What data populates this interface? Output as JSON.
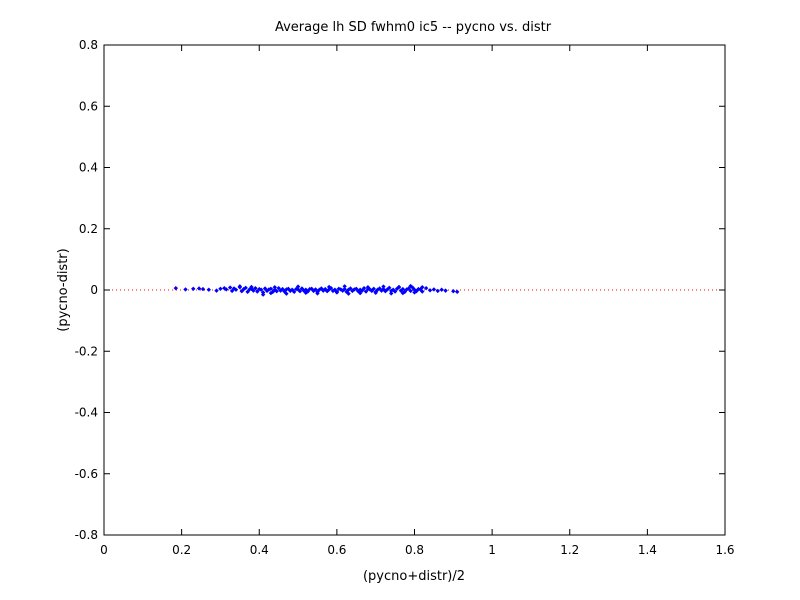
{
  "chart_data": {
    "type": "scatter",
    "title": "Average lh SD fwhm0 ic5 -- pycno vs. distr",
    "xlabel": "(pycno+distr)/2",
    "ylabel": "(pycno-distr)",
    "xlim": [
      0,
      1.6
    ],
    "ylim": [
      -0.8,
      0.8
    ],
    "xticks": [
      "0",
      "0.2",
      "0.4",
      "0.6",
      "0.8",
      "1",
      "1.2",
      "1.4",
      "1.6"
    ],
    "yticks": [
      "-0.8",
      "-0.6",
      "-0.4",
      "-0.2",
      "0",
      "0.2",
      "0.4",
      "0.6",
      "0.8"
    ],
    "grid": false,
    "marker_color": "#0000ff",
    "reference_line": {
      "y": 0,
      "color": "#ff0000",
      "style": "dotted"
    },
    "series": [
      {
        "x": [
          0.185,
          0.21,
          0.23,
          0.245,
          0.255,
          0.27,
          0.29,
          0.3,
          0.31,
          0.315,
          0.325,
          0.33,
          0.335,
          0.34,
          0.35,
          0.355,
          0.36,
          0.365,
          0.37,
          0.375,
          0.38,
          0.385,
          0.39,
          0.395,
          0.4,
          0.405,
          0.41,
          0.415,
          0.42,
          0.425,
          0.43,
          0.435,
          0.44,
          0.445,
          0.45,
          0.455,
          0.46,
          0.465,
          0.47,
          0.475,
          0.48,
          0.485,
          0.49,
          0.495,
          0.5,
          0.505,
          0.51,
          0.515,
          0.52,
          0.525,
          0.53,
          0.535,
          0.54,
          0.545,
          0.55,
          0.555,
          0.56,
          0.565,
          0.57,
          0.575,
          0.58,
          0.585,
          0.59,
          0.595,
          0.6,
          0.605,
          0.61,
          0.615,
          0.62,
          0.625,
          0.63,
          0.635,
          0.64,
          0.645,
          0.65,
          0.655,
          0.66,
          0.665,
          0.67,
          0.675,
          0.68,
          0.685,
          0.69,
          0.695,
          0.7,
          0.705,
          0.71,
          0.715,
          0.72,
          0.725,
          0.73,
          0.735,
          0.74,
          0.745,
          0.75,
          0.755,
          0.76,
          0.765,
          0.77,
          0.775,
          0.78,
          0.785,
          0.79,
          0.795,
          0.8,
          0.805,
          0.81,
          0.815,
          0.82,
          0.83,
          0.84,
          0.85,
          0.86,
          0.87,
          0.88,
          0.9,
          0.91,
          0.41,
          0.43,
          0.47,
          0.52,
          0.55,
          0.6,
          0.63,
          0.66,
          0.7,
          0.74,
          0.77,
          0.8,
          0.35,
          0.38,
          0.44,
          0.5,
          0.58,
          0.62,
          0.68,
          0.72,
          0.76,
          0.79,
          0.82
        ],
        "y": [
          0.006,
          0.002,
          0.004,
          0.005,
          0.003,
          0.001,
          -0.002,
          0.004,
          0.006,
          0.002,
          0.008,
          -0.003,
          0.005,
          0.001,
          0.009,
          -0.004,
          0.003,
          0.007,
          -0.006,
          0.002,
          0.004,
          -0.002,
          0.006,
          -0.005,
          0.003,
          0.001,
          -0.008,
          0.005,
          -0.003,
          0.002,
          0.004,
          -0.006,
          0.001,
          -0.004,
          0.006,
          -0.002,
          0.003,
          -0.005,
          0.002,
          0.004,
          -0.003,
          0.001,
          -0.006,
          0.003,
          0.002,
          -0.004,
          0.005,
          -0.002,
          0.001,
          -0.005,
          0.003,
          0.004,
          -0.003,
          0.002,
          -0.006,
          0.001,
          0.005,
          -0.002,
          0.003,
          -0.004,
          0.002,
          0.006,
          -0.003,
          0.001,
          -0.005,
          0.004,
          0.002,
          -0.002,
          0.003,
          -0.006,
          0.001,
          0.005,
          -0.003,
          0.002,
          0.004,
          -0.004,
          0.001,
          -0.002,
          0.006,
          -0.005,
          0.003,
          0.002,
          -0.003,
          0.004,
          -0.006,
          0.001,
          0.005,
          -0.002,
          0.003,
          -0.004,
          0.002,
          0.007,
          -0.003,
          0.001,
          -0.005,
          0.004,
          0.009,
          -0.002,
          0.003,
          -0.006,
          0.002,
          0.005,
          -0.003,
          0.008,
          0.001,
          -0.004,
          0.003,
          0.002,
          -0.005,
          0.006,
          -0.001,
          0.002,
          -0.003,
          0.001,
          -0.002,
          -0.004,
          -0.006,
          -0.015,
          -0.01,
          -0.012,
          -0.009,
          -0.011,
          -0.008,
          -0.012,
          -0.01,
          -0.009,
          -0.011,
          -0.01,
          -0.008,
          0.012,
          0.01,
          0.009,
          0.011,
          0.01,
          0.012,
          0.009,
          0.011,
          0.01,
          0.013,
          0.009
        ]
      }
    ]
  }
}
